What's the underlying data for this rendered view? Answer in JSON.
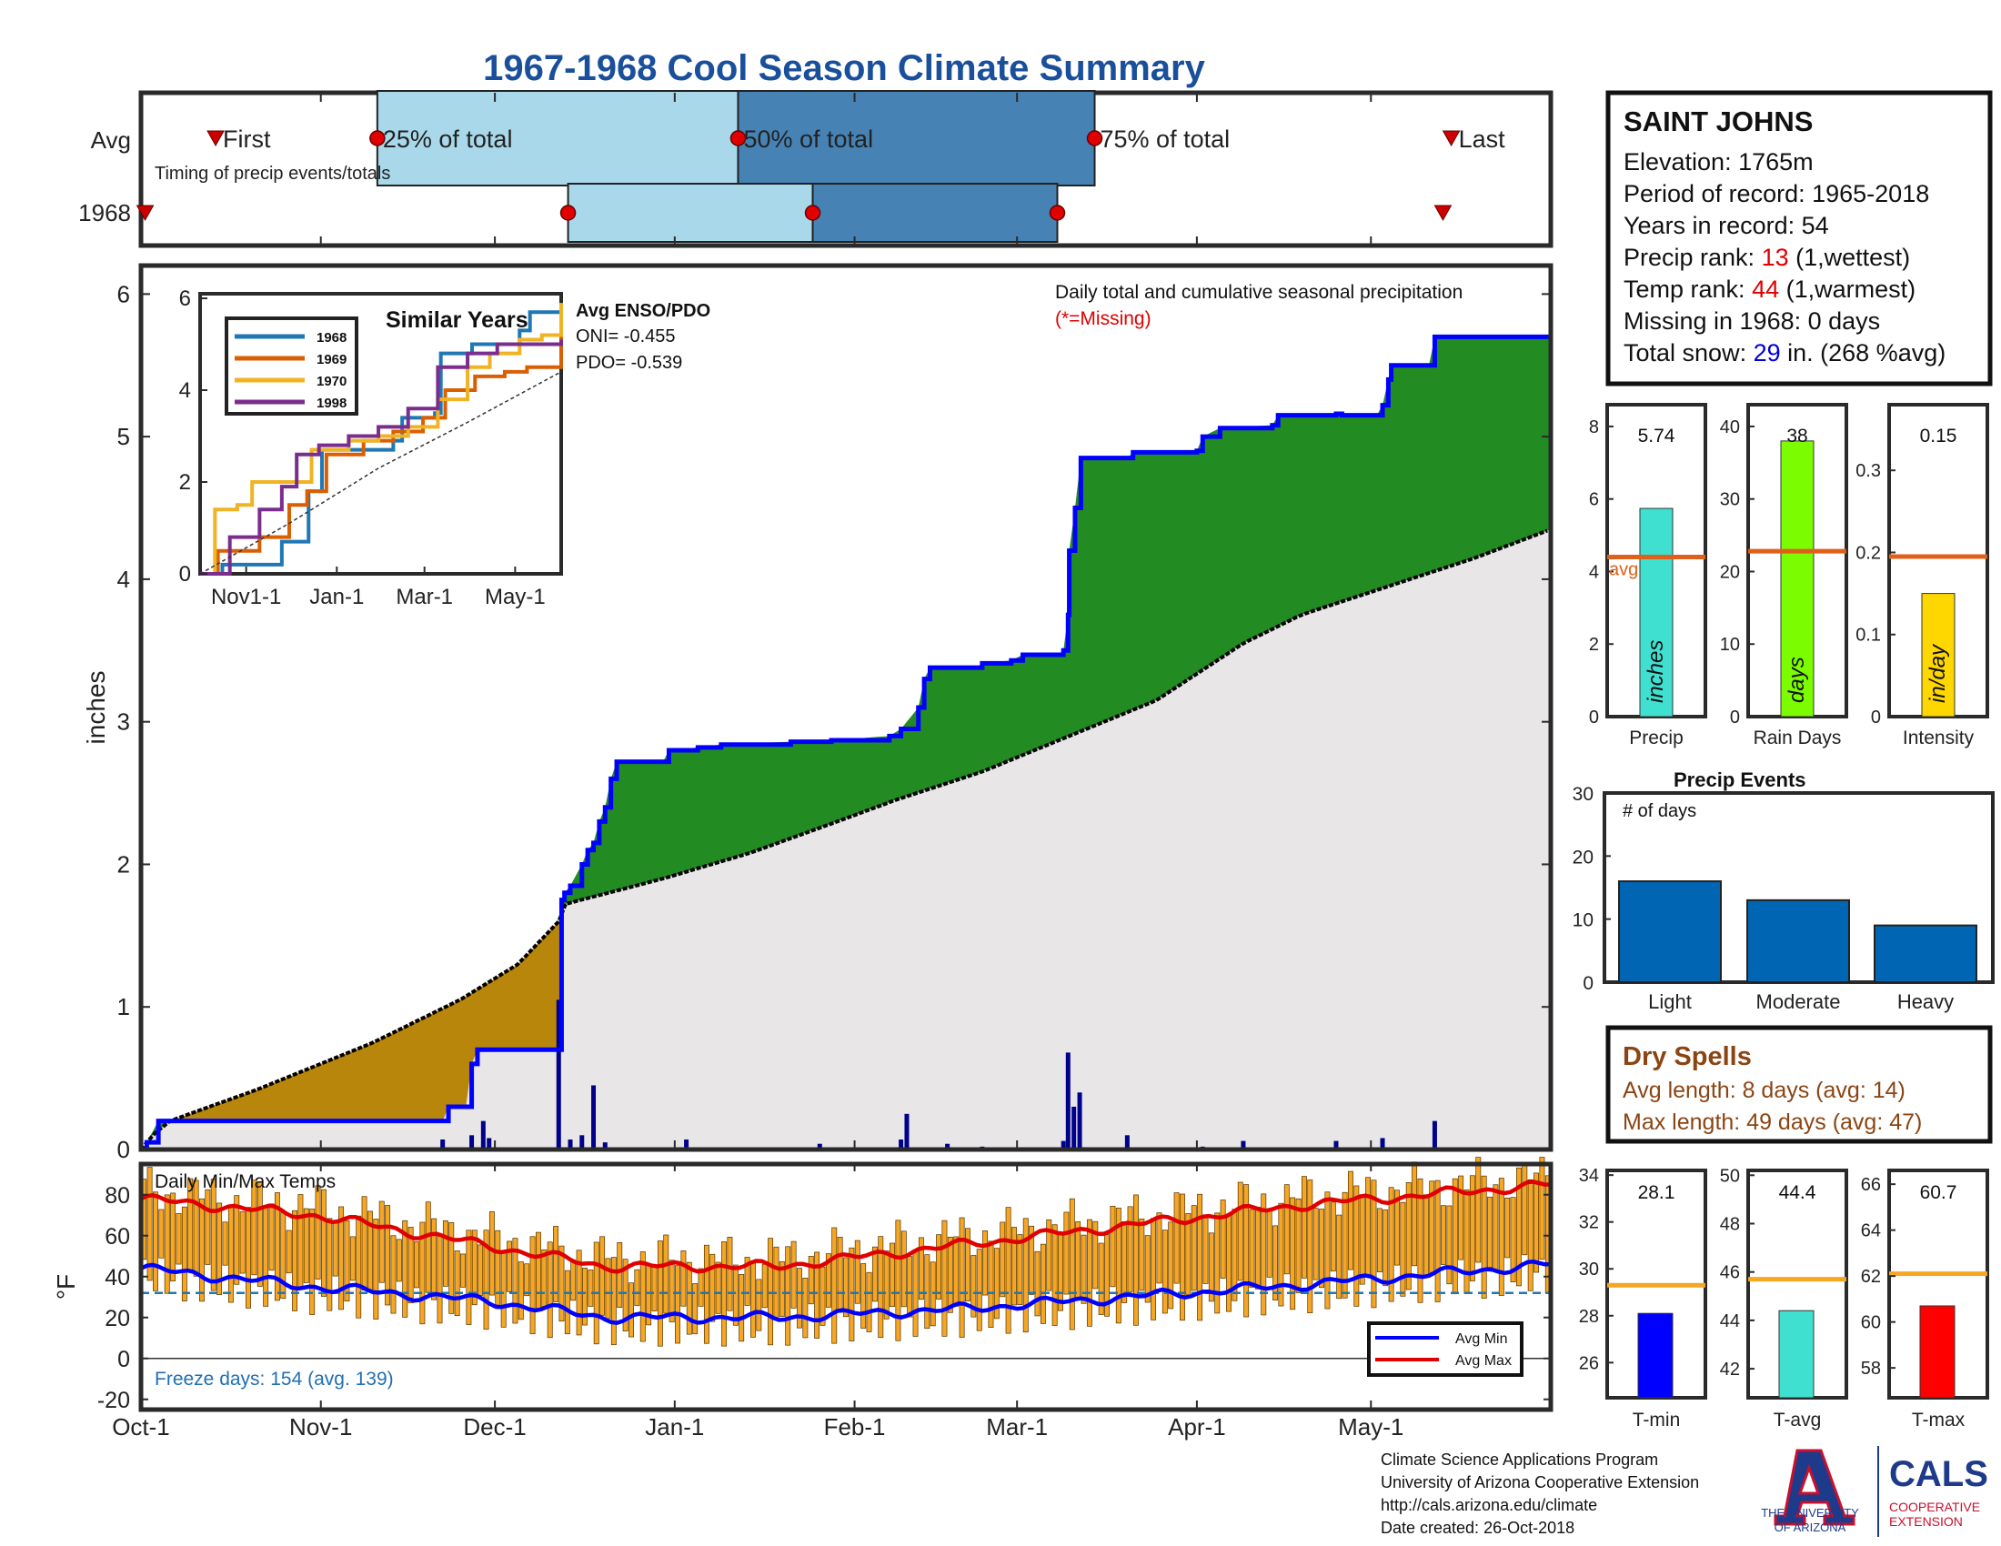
{
  "title": "1967-1968 Cool Season Climate Summary",
  "timing": {
    "row_labels": [
      "Avg",
      "1968"
    ],
    "label_first": "First",
    "label_q25": "25% of total",
    "label_q50": "50% of total",
    "label_q75": "75% of total",
    "label_last": "Last",
    "caption": "Timing of precip events/totals",
    "day_scale": [
      0,
      243
    ],
    "avg": {
      "first": 18,
      "q25": 57,
      "q50": 144,
      "q75": 230,
      "last": 316
    },
    "y1968": {
      "first": 1,
      "q25": 103,
      "q50": 162,
      "q75": 221,
      "last": 314
    },
    "colors": {
      "light": "#a8d8ea",
      "dark": "#4682b4",
      "dot": "#e00000",
      "first": "#cc0000"
    }
  },
  "station": {
    "name": "SAINT JOHNS",
    "elevation": "Elevation: 1765m",
    "period": "Period of record: 1965-2018",
    "years": "Years in record: 54",
    "precip_rank_label": "Precip rank: ",
    "precip_rank": "13",
    "precip_rank_note": " (1,wettest)",
    "temp_rank_label": "Temp rank: ",
    "temp_rank": "44",
    "temp_rank_note": " (1,warmest)",
    "missing": "Missing in 1968: 0 days",
    "snow_label": "Total snow: ",
    "snow_value": "29",
    "snow_note": " in. (268 %avg)"
  },
  "main_chart": {
    "ylabel": "inches",
    "yticks": [
      "0",
      "1",
      "2",
      "3",
      "4",
      "5",
      "6"
    ],
    "xticks": [
      "Oct-1",
      "Nov-1",
      "Dec-1",
      "Jan-1",
      "Feb-1",
      "Mar-1",
      "Apr-1",
      "May-1"
    ],
    "note": "Daily total and cumulative seasonal precipitation",
    "missing_note": "(*=Missing)",
    "enso_title": "Avg ENSO/PDO",
    "oni": "ONI= -0.455",
    "pdo": "PDO= -0.539",
    "chart_data": {
      "type": "area",
      "ylim": [
        0,
        6.2
      ],
      "xlim_days": [
        0,
        243
      ],
      "cumulative_1968": [
        [
          0,
          0
        ],
        [
          1,
          0.05
        ],
        [
          3,
          0.2
        ],
        [
          5,
          0.2
        ],
        [
          52,
          0.2
        ],
        [
          53,
          0.3
        ],
        [
          56,
          0.3
        ],
        [
          57,
          0.6
        ],
        [
          58,
          0.7
        ],
        [
          72,
          0.7
        ],
        [
          72.5,
          1.75
        ],
        [
          73,
          1.8
        ],
        [
          74,
          1.85
        ],
        [
          76,
          2.0
        ],
        [
          77,
          2.1
        ],
        [
          78,
          2.15
        ],
        [
          79,
          2.3
        ],
        [
          80,
          2.4
        ],
        [
          81,
          2.6
        ],
        [
          82,
          2.72
        ],
        [
          90,
          2.72
        ],
        [
          91,
          2.8
        ],
        [
          96,
          2.82
        ],
        [
          100,
          2.84
        ],
        [
          112,
          2.86
        ],
        [
          119,
          2.87
        ],
        [
          129,
          2.9
        ],
        [
          131,
          2.95
        ],
        [
          134,
          3.1
        ],
        [
          135,
          3.3
        ],
        [
          136,
          3.38
        ],
        [
          144,
          3.38
        ],
        [
          145,
          3.41
        ],
        [
          150,
          3.43
        ],
        [
          152,
          3.47
        ],
        [
          158,
          3.47
        ],
        [
          159,
          3.5
        ],
        [
          159.8,
          3.75
        ],
        [
          160,
          4.2
        ],
        [
          161,
          4.5
        ],
        [
          162,
          4.85
        ],
        [
          170,
          4.85
        ],
        [
          171,
          4.89
        ],
        [
          182,
          4.9
        ],
        [
          183,
          5.0
        ],
        [
          186,
          5.06
        ],
        [
          195,
          5.08
        ],
        [
          196,
          5.15
        ],
        [
          206,
          5.16
        ],
        [
          207,
          5.15
        ],
        [
          213,
          5.15
        ],
        [
          214,
          5.22
        ],
        [
          215,
          5.4
        ],
        [
          215.5,
          5.5
        ],
        [
          222,
          5.5
        ],
        [
          223,
          5.7
        ],
        [
          243,
          5.7
        ]
      ],
      "avg_cumulative": [
        [
          0,
          0
        ],
        [
          2,
          0.1
        ],
        [
          5,
          0.2
        ],
        [
          20,
          0.42
        ],
        [
          40,
          0.75
        ],
        [
          55,
          1.05
        ],
        [
          65,
          1.3
        ],
        [
          72,
          1.6
        ],
        [
          73,
          1.72
        ],
        [
          90,
          1.9
        ],
        [
          105,
          2.08
        ],
        [
          120,
          2.3
        ],
        [
          130,
          2.45
        ],
        [
          145,
          2.65
        ],
        [
          160,
          2.9
        ],
        [
          175,
          3.15
        ],
        [
          190,
          3.55
        ],
        [
          200,
          3.75
        ],
        [
          215,
          3.95
        ],
        [
          230,
          4.15
        ],
        [
          243,
          4.35
        ]
      ],
      "daily_bars": [
        [
          52,
          0.07
        ],
        [
          57,
          0.1
        ],
        [
          59,
          0.2
        ],
        [
          60,
          0.08
        ],
        [
          72,
          1.05
        ],
        [
          74,
          0.07
        ],
        [
          76,
          0.1
        ],
        [
          78,
          0.45
        ],
        [
          80,
          0.05
        ],
        [
          94,
          0.07
        ],
        [
          117,
          0.04
        ],
        [
          131,
          0.07
        ],
        [
          132,
          0.25
        ],
        [
          139,
          0.04
        ],
        [
          145,
          0.02
        ],
        [
          159,
          0.06
        ],
        [
          159.8,
          0.68
        ],
        [
          160.8,
          0.3
        ],
        [
          161.8,
          0.4
        ],
        [
          170,
          0.1
        ],
        [
          183,
          0.02
        ],
        [
          190,
          0.06
        ],
        [
          206,
          0.06
        ],
        [
          214,
          0.08
        ],
        [
          223,
          0.2
        ]
      ],
      "colors": {
        "obs_line": "#0000ff",
        "avg_line": "#000000",
        "above_fill": "#228b22",
        "below_fill": "#b8860b",
        "base_fill": "#e8e6e6",
        "bars": "#00008b"
      }
    }
  },
  "similar_years": {
    "title": "Similar Years",
    "yticks": [
      "0",
      "2",
      "4",
      "6"
    ],
    "xticks": [
      "Nov1-1",
      "Jan-1",
      "Mar-1",
      "May-1"
    ],
    "legend": [
      "1968",
      "1969",
      "1970",
      "1998"
    ],
    "chart_data": {
      "type": "line",
      "ylim": [
        0,
        6
      ],
      "xlim_days": [
        0,
        243
      ],
      "series": [
        {
          "name": "1968",
          "color": "#1f77b4",
          "points": [
            [
              0,
              0
            ],
            [
              15,
              0.2
            ],
            [
              30,
              0.2
            ],
            [
              55,
              0.7
            ],
            [
              70,
              0.7
            ],
            [
              73,
              1.8
            ],
            [
              82,
              2.7
            ],
            [
              130,
              2.9
            ],
            [
              136,
              3.4
            ],
            [
              158,
              3.5
            ],
            [
              162,
              4.8
            ],
            [
              183,
              5.0
            ],
            [
              215,
              5.3
            ],
            [
              222,
              5.7
            ],
            [
              243,
              5.8
            ]
          ]
        },
        {
          "name": "1969",
          "color": "#d95f02",
          "points": [
            [
              0,
              0
            ],
            [
              12,
              0.5
            ],
            [
              40,
              0.8
            ],
            [
              60,
              1.5
            ],
            [
              72,
              1.8
            ],
            [
              85,
              2.6
            ],
            [
              110,
              2.9
            ],
            [
              130,
              3.1
            ],
            [
              150,
              3.4
            ],
            [
              165,
              4.0
            ],
            [
              185,
              4.3
            ],
            [
              205,
              4.4
            ],
            [
              220,
              4.5
            ],
            [
              243,
              5.3
            ]
          ]
        },
        {
          "name": "1970",
          "color": "#f0b323",
          "points": [
            [
              0,
              0
            ],
            [
              10,
              1.4
            ],
            [
              25,
              1.5
            ],
            [
              35,
              2.0
            ],
            [
              60,
              2.0
            ],
            [
              75,
              2.7
            ],
            [
              100,
              2.9
            ],
            [
              120,
              3.0
            ],
            [
              140,
              3.2
            ],
            [
              160,
              3.8
            ],
            [
              180,
              4.5
            ],
            [
              195,
              4.8
            ],
            [
              215,
              5.1
            ],
            [
              230,
              5.2
            ],
            [
              243,
              5.9
            ]
          ]
        },
        {
          "name": "1998",
          "color": "#7b2d8e",
          "points": [
            [
              0,
              0
            ],
            [
              20,
              0.8
            ],
            [
              40,
              1.4
            ],
            [
              55,
              1.9
            ],
            [
              65,
              2.6
            ],
            [
              80,
              2.8
            ],
            [
              100,
              3.0
            ],
            [
              120,
              3.2
            ],
            [
              140,
              3.6
            ],
            [
              160,
              4.5
            ],
            [
              180,
              4.8
            ],
            [
              200,
              5.0
            ],
            [
              220,
              5.0
            ],
            [
              243,
              5.1
            ]
          ]
        },
        {
          "name": "avg",
          "color": "#333333",
          "points": [
            [
              0,
              0
            ],
            [
              60,
              1.1
            ],
            [
              120,
              2.3
            ],
            [
              180,
              3.3
            ],
            [
              243,
              4.4
            ]
          ]
        }
      ]
    }
  },
  "temps": {
    "caption": "Daily Min/Max Temps",
    "ylabel": "°F",
    "yticks": [
      "-20",
      "0",
      "20",
      "40",
      "60",
      "80"
    ],
    "freeze": "Freeze days: 154 (avg. 139)",
    "legend_min": "Avg Min",
    "legend_max": "Avg Max",
    "chart_data": {
      "type": "bar",
      "ylim": [
        -25,
        95
      ],
      "freeze_line": 32,
      "avg_max": [
        [
          0,
          78
        ],
        [
          30,
          70
        ],
        [
          60,
          55
        ],
        [
          80,
          45
        ],
        [
          110,
          45
        ],
        [
          140,
          55
        ],
        [
          170,
          65
        ],
        [
          200,
          75
        ],
        [
          243,
          85
        ]
      ],
      "avg_min": [
        [
          0,
          44
        ],
        [
          30,
          35
        ],
        [
          60,
          28
        ],
        [
          80,
          20
        ],
        [
          110,
          20
        ],
        [
          140,
          24
        ],
        [
          170,
          30
        ],
        [
          200,
          36
        ],
        [
          243,
          46
        ]
      ],
      "colors": {
        "bars": "#f5a623",
        "max": "#e00000",
        "min": "#0000ff",
        "freeze": "#1f77b4"
      }
    }
  },
  "bar_panels": [
    {
      "label": "Precip",
      "value_label": "5.74",
      "unit": "inches",
      "value": 5.74,
      "avg": 4.4,
      "ymax": 8.6,
      "yticks": [
        "0",
        "2",
        "4",
        "6",
        "8"
      ],
      "tick_values": [
        0,
        2,
        4,
        6,
        8
      ],
      "color": "#40e0d0",
      "avg_label": "avg"
    },
    {
      "label": "Rain Days",
      "value_label": "38",
      "unit": "days",
      "value": 38,
      "avg": 22.8,
      "ymax": 43,
      "yticks": [
        "0",
        "10",
        "20",
        "30",
        "40"
      ],
      "tick_values": [
        0,
        10,
        20,
        30,
        40
      ],
      "color": "#7cfc00",
      "avg_label": ""
    },
    {
      "label": "Intensity",
      "value_label": "0.15",
      "unit": "in/day",
      "value": 0.15,
      "avg": 0.195,
      "ymax": 0.38,
      "yticks": [
        "0",
        "0.1",
        "0.2",
        "0.3"
      ],
      "tick_values": [
        0,
        0.1,
        0.2,
        0.3
      ],
      "color": "#ffd700",
      "avg_label": ""
    }
  ],
  "events": {
    "title": "Precip Events",
    "caption": "# of days",
    "yticks": [
      "0",
      "10",
      "20",
      "30"
    ],
    "chart_data": {
      "type": "bar",
      "categories": [
        "Light",
        "Moderate",
        "Heavy"
      ],
      "values": [
        16,
        13,
        9
      ],
      "ylim": [
        0,
        30
      ],
      "color": "#0066b3"
    }
  },
  "dry_spells": {
    "title": "Dry Spells",
    "avg_length": "Avg length: 8 days (avg: 14)",
    "max_length": "Max length: 49 days (avg: 47)"
  },
  "temp_panels": [
    {
      "label": "T-min",
      "value_label": "28.1",
      "value": 28.1,
      "avg": 29.3,
      "ylim": [
        24.5,
        34.2
      ],
      "yticks": [
        "26",
        "28",
        "30",
        "32",
        "34"
      ],
      "tick_values": [
        26,
        28,
        30,
        32,
        34
      ],
      "color": "#0000ff"
    },
    {
      "label": "T-avg",
      "value_label": "44.4",
      "value": 44.4,
      "avg": 45.7,
      "ylim": [
        40.8,
        50.2
      ],
      "yticks": [
        "42",
        "44",
        "46",
        "48",
        "50"
      ],
      "tick_values": [
        42,
        44,
        46,
        48,
        50
      ],
      "color": "#40e0d0"
    },
    {
      "label": "T-max",
      "value_label": "60.7",
      "value": 60.7,
      "avg": 62.1,
      "ylim": [
        56.7,
        66.6
      ],
      "yticks": [
        "58",
        "60",
        "62",
        "64",
        "66"
      ],
      "tick_values": [
        58,
        60,
        62,
        64,
        66
      ],
      "color": "#ff0000"
    }
  ],
  "footer": {
    "line1": "Climate Science Applications Program",
    "line2": "University of Arizona Cooperative Extension",
    "line3": "http://cals.arizona.edu/climate",
    "line4": " Date created: 26-Oct-2018",
    "ua_line1": "THE UNIVERSITY",
    "ua_line2": "OF ARIZONA",
    "cals": "CALS",
    "cals_sub1": "COOPERATIVE",
    "cals_sub2": "EXTENSION"
  }
}
